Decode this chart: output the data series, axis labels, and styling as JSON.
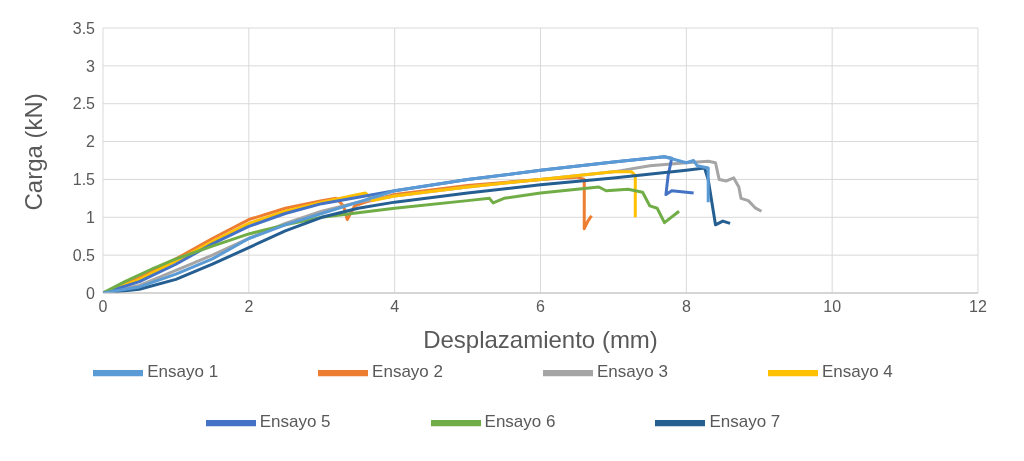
{
  "chart_data": {
    "type": "line",
    "xlabel": "Desplazamiento (mm)",
    "ylabel": "Carga (kN)",
    "xlim": [
      0,
      12
    ],
    "xticks": [
      0,
      2,
      4,
      6,
      8,
      10,
      12
    ],
    "ylim": [
      0,
      3.5
    ],
    "yticks": [
      0,
      0.5,
      1,
      1.5,
      2,
      2.5,
      3,
      3.5
    ],
    "grid": true,
    "legend": "bottom",
    "marker": "none",
    "line_style": "solid",
    "series": [
      {
        "name": "Ensayo 2",
        "color": "#ed7d31",
        "x": [
          0,
          0.5,
          1,
          1.5,
          2,
          2.5,
          3,
          3.2,
          3.3,
          3.35,
          3.45,
          3.6,
          4,
          5,
          6,
          6.5,
          6.6,
          6.6,
          6.65,
          6.7
        ],
        "values": [
          0,
          0.2,
          0.45,
          0.72,
          0.97,
          1.12,
          1.22,
          1.25,
          1.15,
          0.97,
          1.15,
          1.2,
          1.3,
          1.42,
          1.5,
          1.53,
          1.5,
          0.85,
          0.95,
          1.02
        ]
      },
      {
        "name": "Ensayo 3",
        "color": "#a5a5a5",
        "x": [
          0,
          0.5,
          1,
          1.5,
          2,
          2.5,
          3,
          3.5,
          4,
          5,
          6,
          7,
          7.5,
          8,
          8.3,
          8.4,
          8.45,
          8.55,
          8.65,
          8.72,
          8.75,
          8.85,
          8.95,
          9.03
        ],
        "values": [
          0,
          0.1,
          0.3,
          0.5,
          0.72,
          0.92,
          1.08,
          1.2,
          1.28,
          1.4,
          1.5,
          1.6,
          1.68,
          1.72,
          1.74,
          1.72,
          1.5,
          1.48,
          1.52,
          1.4,
          1.25,
          1.22,
          1.12,
          1.08
        ]
      },
      {
        "name": "Ensayo 4",
        "color": "#ffc000",
        "x": [
          0,
          0.5,
          1,
          1.5,
          2,
          2.5,
          3,
          3.5,
          3.6,
          3.7,
          4,
          5,
          6,
          7,
          7.25,
          7.3,
          7.3
        ],
        "values": [
          0,
          0.18,
          0.42,
          0.68,
          0.92,
          1.08,
          1.2,
          1.3,
          1.32,
          1.22,
          1.28,
          1.4,
          1.5,
          1.6,
          1.6,
          1.55,
          1
        ]
      },
      {
        "name": "Ensayo 5",
        "color": "#4472c4",
        "x": [
          0,
          0.5,
          1,
          1.5,
          2,
          2.5,
          3,
          4,
          5,
          6,
          7,
          7.7,
          7.8,
          7.75,
          7.72,
          7.8,
          8,
          8.1
        ],
        "values": [
          0,
          0.15,
          0.38,
          0.65,
          0.88,
          1.05,
          1.18,
          1.35,
          1.5,
          1.62,
          1.73,
          1.8,
          1.78,
          1.55,
          1.3,
          1.35,
          1.33,
          1.32
        ]
      },
      {
        "name": "Ensayo 6",
        "color": "#70ad47",
        "x": [
          0,
          0.3,
          0.7,
          1,
          1.5,
          2,
          2.5,
          3,
          4,
          5,
          5.3,
          5.35,
          5.5,
          6,
          6.8,
          6.9,
          7.2,
          7.4,
          7.5,
          7.6,
          7.7,
          7.9
        ],
        "values": [
          0,
          0.15,
          0.33,
          0.45,
          0.62,
          0.78,
          0.9,
          1,
          1.12,
          1.22,
          1.25,
          1.19,
          1.25,
          1.32,
          1.4,
          1.35,
          1.37,
          1.33,
          1.15,
          1.12,
          0.93,
          1.08
        ]
      },
      {
        "name": "Ensayo 7",
        "color": "#255e91",
        "x": [
          0,
          0.5,
          1,
          1.5,
          2,
          2.5,
          3,
          3.5,
          4,
          5,
          6,
          7,
          8,
          8.25,
          8.3,
          8.35,
          8.4,
          8.5,
          8.6
        ],
        "values": [
          0,
          0.05,
          0.18,
          0.38,
          0.6,
          0.82,
          1,
          1.12,
          1.2,
          1.32,
          1.43,
          1.52,
          1.62,
          1.65,
          1.5,
          1.2,
          0.9,
          0.95,
          0.92
        ]
      },
      {
        "name": "Ensayo 1",
        "color": "#5b9bd5",
        "x": [
          0,
          0.5,
          1,
          1.5,
          2,
          2.5,
          3,
          3.5,
          4,
          5,
          6,
          7,
          7.7,
          7.85,
          8,
          8.1,
          8.15,
          8.3,
          8.3
        ],
        "values": [
          0,
          0.08,
          0.25,
          0.45,
          0.72,
          0.9,
          1.05,
          1.2,
          1.35,
          1.5,
          1.62,
          1.73,
          1.8,
          1.76,
          1.72,
          1.75,
          1.68,
          1.65,
          1.2
        ]
      }
    ]
  }
}
